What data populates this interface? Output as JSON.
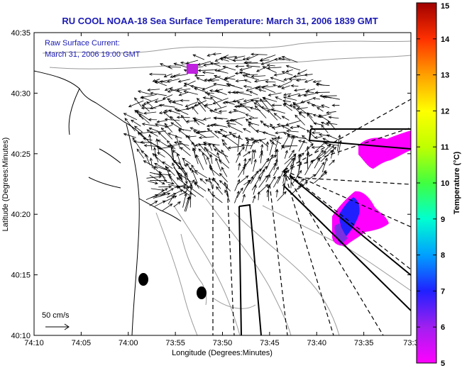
{
  "title": "RU COOL  NOAA-18  Sea Surface Temperature:  March 31, 2006 1839 GMT",
  "annotation": {
    "line1": "Raw Surface Current:",
    "line2": "March 31, 2006 19:00 GMT"
  },
  "scale_label": "50 cm/s",
  "map": {
    "x_label": "Longitude (Degrees:Minutes)",
    "y_label": "Latitude (Degrees:Minutes)",
    "x_ticks": [
      "74:10",
      "74:05",
      "74:00",
      "73:55",
      "73:50",
      "73:45",
      "73:40",
      "73:35",
      "73:3"
    ],
    "y_ticks": [
      "40:35",
      "40:30",
      "40:25",
      "40:20",
      "40:15",
      "40:10"
    ]
  },
  "colorbar": {
    "label": "Temperature (°C)",
    "ticks": [
      "15",
      "14",
      "13",
      "12",
      "11",
      "10",
      "9",
      "8",
      "7",
      "6",
      "5"
    ],
    "min": 5,
    "max": 15,
    "colors": [
      "#ff00ff",
      "#a020f0",
      "#2020ff",
      "#00a0ff",
      "#00ffd0",
      "#40ff40",
      "#c0ff00",
      "#ffff00",
      "#ffa000",
      "#ff3000",
      "#a00000"
    ]
  },
  "colors": {
    "title": "#1a1ab4",
    "sst_magenta": "#ff00ff",
    "sst_blue": "#2020ff"
  }
}
